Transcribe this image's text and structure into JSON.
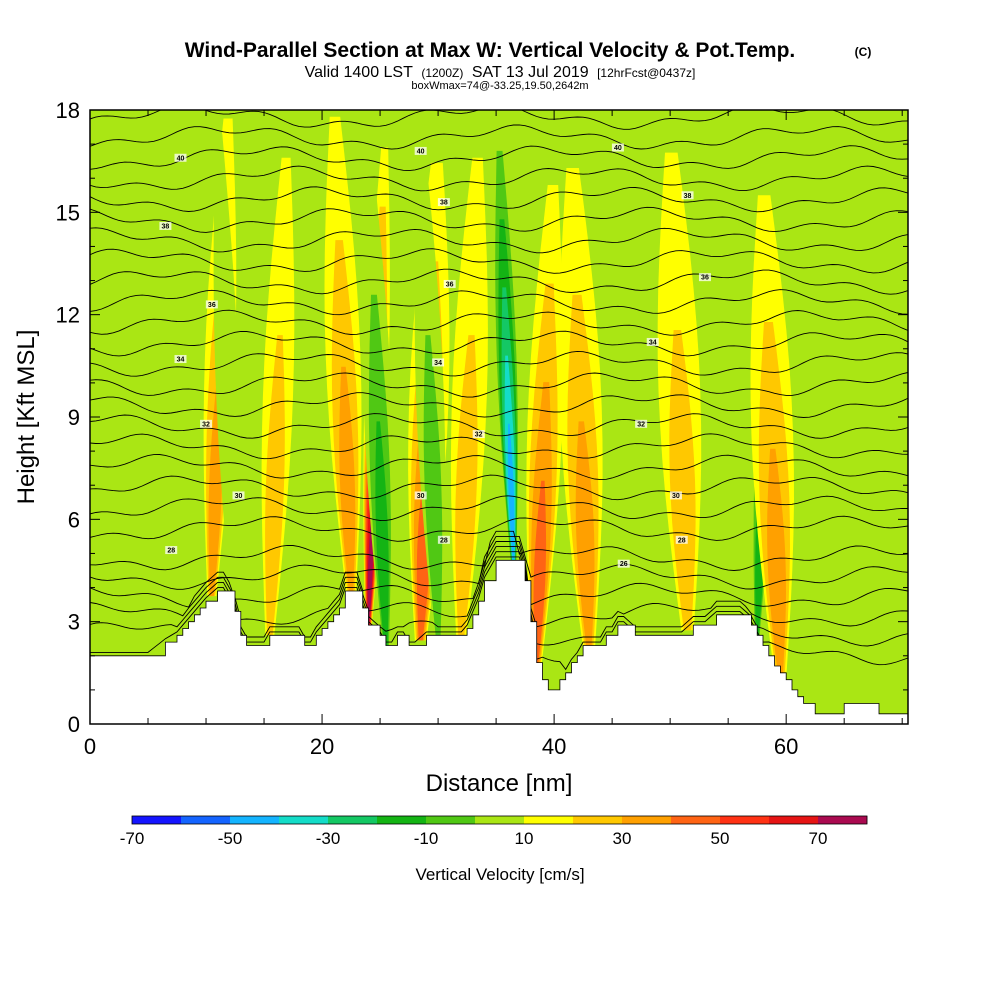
{
  "chart_data": {
    "type": "heatmap",
    "title": "Wind-Parallel Section at Max W: Vertical Velocity & Pot.Temp.",
    "title_mark": "(C)",
    "subtitle_parts": [
      "Valid 1400 LST",
      "(1200Z)",
      "SAT 13 Jul 2019",
      "[12hrFcst@0437z]"
    ],
    "subtitle2": "boxWmax=74@-33.25,19.50,2642m",
    "xlabel": "Distance [nm]",
    "ylabel": "Height [Kft MSL]",
    "xlim": [
      0,
      70.5
    ],
    "ylim": [
      0,
      18
    ],
    "x_ticks": [
      0,
      20,
      40,
      60
    ],
    "y_ticks": [
      0,
      3,
      6,
      9,
      12,
      15,
      18
    ],
    "colorbar": {
      "title": "Vertical Velocity [cm/s]",
      "labels": [
        "-70",
        "-50",
        "-30",
        "-10",
        "10",
        "30",
        "50",
        "70"
      ],
      "colors": [
        "#1414ff",
        "#1464ff",
        "#14b4ff",
        "#14dcc8",
        "#14c864",
        "#14b414",
        "#50c814",
        "#aae614",
        "#ffff00",
        "#ffc800",
        "#ffa000",
        "#ff6414",
        "#ff3214",
        "#e61414",
        "#aa0a50"
      ]
    },
    "bands": [
      {
        "x": 10.5,
        "type": "pos",
        "amp": 30,
        "w": 1.3
      },
      {
        "x": 12.5,
        "type": "neg",
        "amp": -18,
        "w": 1.0
      },
      {
        "x": 15.5,
        "type": "pos",
        "amp": 25,
        "w": 1.3
      },
      {
        "x": 22.5,
        "type": "pos",
        "amp": 30,
        "w": 1.5
      },
      {
        "x": 24.0,
        "type": "pos",
        "amp": 70,
        "w": 1.0
      },
      {
        "x": 25.5,
        "type": "neg",
        "amp": -35,
        "w": 1.2
      },
      {
        "x": 28.5,
        "type": "pos",
        "amp": 45,
        "w": 1.7
      },
      {
        "x": 30.0,
        "type": "neg",
        "amp": -20,
        "w": 1.2
      },
      {
        "x": 32.0,
        "type": "pos",
        "amp": 25,
        "w": 1.5
      },
      {
        "x": 36.5,
        "type": "neg",
        "amp": -65,
        "w": 1.0
      },
      {
        "x": 38.5,
        "type": "pos",
        "amp": 40,
        "w": 1.5
      },
      {
        "x": 43.0,
        "type": "pos",
        "amp": 35,
        "w": 1.8
      },
      {
        "x": 46.0,
        "type": "neg",
        "amp": -15,
        "w": 1.5
      },
      {
        "x": 51.5,
        "type": "pos",
        "amp": 20,
        "w": 1.8
      },
      {
        "x": 57.5,
        "type": "neg",
        "amp": -35,
        "w": 1.0
      },
      {
        "x": 59.5,
        "type": "pos",
        "amp": 30,
        "w": 1.8
      },
      {
        "x": 65.5,
        "type": "neg",
        "amp": -15,
        "w": 1.5
      }
    ],
    "theta_lines": {
      "count": 27,
      "labels": [
        {
          "text": "40",
          "x": 7.8,
          "y": 16.6
        },
        {
          "text": "40",
          "x": 28.5,
          "y": 16.8
        },
        {
          "text": "40",
          "x": 45.5,
          "y": 16.9
        },
        {
          "text": "38",
          "x": 6.5,
          "y": 14.6
        },
        {
          "text": "38",
          "x": 30.5,
          "y": 15.3
        },
        {
          "text": "38",
          "x": 51.5,
          "y": 15.5
        },
        {
          "text": "36",
          "x": 10.5,
          "y": 12.3
        },
        {
          "text": "36",
          "x": 31.0,
          "y": 12.9
        },
        {
          "text": "36",
          "x": 53.0,
          "y": 13.1
        },
        {
          "text": "34",
          "x": 7.8,
          "y": 10.7
        },
        {
          "text": "34",
          "x": 30.0,
          "y": 10.6
        },
        {
          "text": "34",
          "x": 48.5,
          "y": 11.2
        },
        {
          "text": "32",
          "x": 10.0,
          "y": 8.8
        },
        {
          "text": "32",
          "x": 33.5,
          "y": 8.5
        },
        {
          "text": "32",
          "x": 47.5,
          "y": 8.8
        },
        {
          "text": "30",
          "x": 12.8,
          "y": 6.7
        },
        {
          "text": "30",
          "x": 28.5,
          "y": 6.7
        },
        {
          "text": "30",
          "x": 50.5,
          "y": 6.7
        },
        {
          "text": "28",
          "x": 7.0,
          "y": 5.1
        },
        {
          "text": "28",
          "x": 30.5,
          "y": 5.4
        },
        {
          "text": "28",
          "x": 51.0,
          "y": 5.4
        },
        {
          "text": "26",
          "x": 46.0,
          "y": 4.7
        }
      ]
    },
    "terrain_x": [
      0,
      5,
      6.5,
      7.5,
      8,
      8.5,
      9,
      9.5,
      10,
      11,
      11.5,
      12.5,
      13,
      13.5,
      15,
      15.5,
      18,
      18.5,
      19,
      19.5,
      20,
      20.5,
      21,
      21.5,
      22,
      22.5,
      23,
      23.5,
      24,
      25,
      25.5,
      26,
      26.5,
      27,
      27.5,
      28,
      29,
      29.5,
      30.5,
      31,
      32,
      32.5,
      33,
      33.5,
      34,
      35,
      36,
      36.5,
      37,
      37.5,
      38,
      38.5,
      39,
      39.5,
      40,
      40.5,
      41,
      41.5,
      42,
      42.5,
      43,
      44,
      44.5,
      45,
      45.5,
      46,
      47,
      47.5,
      48,
      48.5,
      49,
      50,
      51,
      52,
      53,
      54,
      55,
      56,
      57,
      57.5,
      58,
      58.5,
      59,
      59.5,
      60,
      60.5,
      61,
      61.5,
      62,
      62.5,
      63,
      64,
      65,
      66,
      67,
      68,
      69,
      70.5
    ],
    "terrain_h": [
      2.0,
      2.0,
      2.4,
      2.6,
      2.8,
      3.0,
      3.2,
      3.4,
      3.6,
      3.9,
      3.9,
      3.3,
      2.6,
      2.3,
      2.3,
      2.6,
      2.6,
      2.3,
      2.3,
      2.6,
      2.8,
      3.0,
      3.2,
      3.4,
      3.9,
      3.9,
      3.9,
      3.4,
      2.9,
      2.6,
      2.3,
      2.3,
      2.6,
      2.6,
      2.3,
      2.3,
      2.6,
      2.6,
      2.6,
      2.6,
      2.6,
      2.8,
      3.2,
      3.6,
      4.2,
      4.8,
      4.8,
      4.8,
      4.8,
      4.2,
      3.0,
      1.8,
      1.3,
      1.0,
      1.0,
      1.3,
      1.5,
      1.8,
      2.0,
      2.3,
      2.3,
      2.3,
      2.6,
      2.6,
      2.9,
      2.9,
      2.6,
      2.6,
      2.6,
      2.6,
      2.6,
      2.6,
      2.6,
      2.9,
      2.9,
      3.2,
      3.2,
      3.2,
      2.9,
      2.6,
      2.3,
      2.0,
      1.7,
      1.5,
      1.3,
      1.0,
      0.8,
      0.6,
      0.6,
      0.3,
      0.3,
      0.3,
      0.6,
      0.6,
      0.6,
      0.3,
      0.3,
      0.3
    ]
  }
}
